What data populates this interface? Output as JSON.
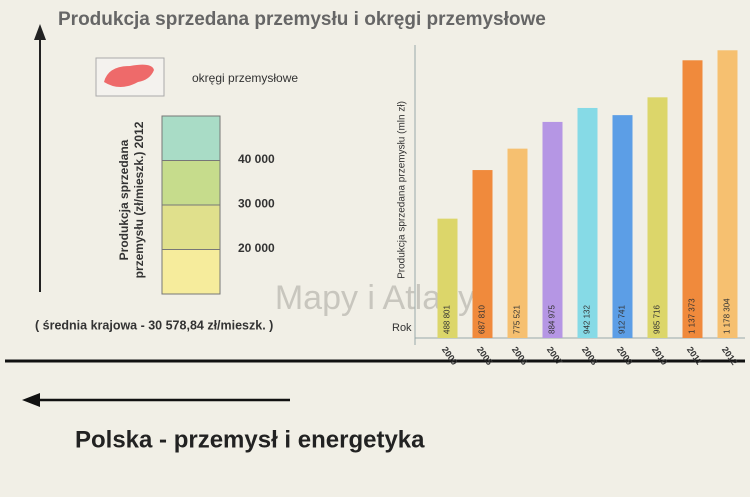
{
  "header": {
    "title": "Produkcja sprzedana przemysłu i okręgi przemysłowe"
  },
  "legend": {
    "region_label": "okręgi przemysłowe",
    "scale_title": [
      "Produkcja sprzedana",
      "przemysłu (zł/mieszk.) 2012"
    ],
    "colors": [
      "#a9dcc6",
      "#c6dc8c",
      "#e0e08c",
      "#f6ec9c"
    ],
    "breaks": [
      {
        "value": 40000,
        "label": "40 000"
      },
      {
        "value": 30000,
        "label": "30 000"
      },
      {
        "value": 20000,
        "label": "20 000"
      }
    ],
    "note": "( średnia krajowa - 30 578,84 zł/mieszk. )"
  },
  "watermark": "Mapy i Atlasy",
  "footer": {
    "title": "Polska - przemysł i energetyka"
  },
  "chart_data": {
    "type": "bar",
    "y_label": "Produkcja sprzedana przemysłu (mln zł)",
    "x_label": "Rok",
    "categories": [
      "2000",
      "2005",
      "2006",
      "2007",
      "2008",
      "2009",
      "2010",
      "2011",
      "2012"
    ],
    "values": [
      488801,
      687810,
      775521,
      884975,
      942132,
      912741,
      985716,
      1137373,
      1178304
    ],
    "value_labels": [
      "488 801",
      "687 810",
      "775 521",
      "884 975",
      "942 132",
      "912 741",
      "985 716",
      "1 137 373",
      "1 178 304"
    ],
    "colors": [
      "#dcd66a",
      "#f08a3c",
      "#f6c070",
      "#b596e4",
      "#86dae6",
      "#5c9ee6",
      "#dcd66a",
      "#f08a3c",
      "#f6c070"
    ],
    "ylim": [
      0,
      1200000
    ]
  }
}
